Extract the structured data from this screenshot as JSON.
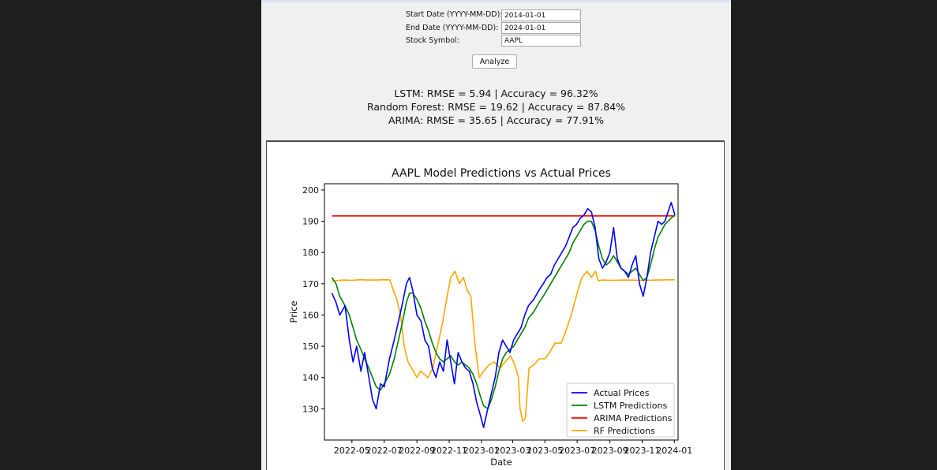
{
  "form": {
    "start_label": "Start Date (YYYY-MM-DD):",
    "start_value": "2014-01-01",
    "end_label": "End Date (YYYY-MM-DD):",
    "end_value": "2024-01-01",
    "symbol_label": "Stock Symbol:",
    "symbol_value": "AAPL",
    "analyze_label": "Analyze"
  },
  "results": [
    "LSTM: RMSE = 5.94 | Accuracy = 96.32%",
    "Random Forest: RMSE = 19.62 | Accuracy = 87.84%",
    "ARIMA: RMSE = 35.65 | Accuracy = 77.91%"
  ],
  "chart_data": {
    "type": "line",
    "title": "AAPL Model Predictions vs Actual Prices",
    "xlabel": "Date",
    "ylabel": "Price",
    "x_range": [
      "2022-03-10",
      "2024-01-08"
    ],
    "ylim": [
      120,
      202
    ],
    "x_ticks": [
      "2022-05",
      "2022-07",
      "2022-09",
      "2022-11",
      "2023-01",
      "2023-03",
      "2023-05",
      "2023-07",
      "2023-09",
      "2023-11",
      "2024-01"
    ],
    "x_tick_dates": [
      "2022-05-01",
      "2022-07-01",
      "2022-09-01",
      "2022-11-01",
      "2023-01-01",
      "2023-03-01",
      "2023-05-01",
      "2023-07-01",
      "2023-09-01",
      "2023-11-01",
      "2024-01-01"
    ],
    "y_ticks": [
      130,
      140,
      150,
      160,
      170,
      180,
      190,
      200
    ],
    "grid": false,
    "legend": "lower-right",
    "series": [
      {
        "name": "Actual Prices",
        "color": "#0000ff",
        "x": [
          "2022-03-24",
          "2022-04-01",
          "2022-04-08",
          "2022-04-18",
          "2022-04-26",
          "2022-05-03",
          "2022-05-10",
          "2022-05-18",
          "2022-05-25",
          "2022-06-02",
          "2022-06-09",
          "2022-06-16",
          "2022-06-24",
          "2022-07-01",
          "2022-07-11",
          "2022-07-20",
          "2022-07-28",
          "2022-08-05",
          "2022-08-12",
          "2022-08-18",
          "2022-08-24",
          "2022-09-01",
          "2022-09-09",
          "2022-09-16",
          "2022-09-23",
          "2022-09-30",
          "2022-10-07",
          "2022-10-14",
          "2022-10-21",
          "2022-10-28",
          "2022-11-04",
          "2022-11-11",
          "2022-11-18",
          "2022-11-25",
          "2022-12-02",
          "2022-12-09",
          "2022-12-16",
          "2022-12-23",
          "2022-12-30",
          "2023-01-05",
          "2023-01-13",
          "2023-01-20",
          "2023-01-27",
          "2023-02-03",
          "2023-02-10",
          "2023-02-17",
          "2023-02-24",
          "2023-03-03",
          "2023-03-10",
          "2023-03-17",
          "2023-03-24",
          "2023-03-31",
          "2023-04-10",
          "2023-04-20",
          "2023-04-28",
          "2023-05-05",
          "2023-05-12",
          "2023-05-19",
          "2023-05-26",
          "2023-06-02",
          "2023-06-09",
          "2023-06-16",
          "2023-06-23",
          "2023-06-30",
          "2023-07-07",
          "2023-07-14",
          "2023-07-21",
          "2023-07-28",
          "2023-08-04",
          "2023-08-11",
          "2023-08-18",
          "2023-08-25",
          "2023-09-01",
          "2023-09-08",
          "2023-09-15",
          "2023-09-22",
          "2023-09-29",
          "2023-10-06",
          "2023-10-13",
          "2023-10-20",
          "2023-10-27",
          "2023-11-03",
          "2023-11-10",
          "2023-11-17",
          "2023-11-24",
          "2023-12-01",
          "2023-12-08",
          "2023-12-14",
          "2023-12-20",
          "2023-12-26",
          "2024-01-02"
        ],
        "values": [
          167,
          164,
          160,
          163,
          152,
          145,
          150,
          142,
          148,
          140,
          133,
          130,
          138,
          137,
          146,
          152,
          158,
          164,
          170,
          172,
          168,
          160,
          158,
          152,
          150,
          143,
          140,
          145,
          142,
          152,
          145,
          138,
          148,
          145,
          143,
          142,
          138,
          132,
          128,
          124,
          130,
          135,
          140,
          148,
          152,
          150,
          148,
          152,
          154,
          156,
          160,
          163,
          165,
          168,
          170,
          172,
          173,
          176,
          178,
          180,
          182,
          185,
          188,
          189,
          191,
          192,
          194,
          193,
          188,
          178,
          175,
          177,
          180,
          188,
          178,
          175,
          174,
          172,
          176,
          179,
          170,
          166,
          172,
          180,
          185,
          190,
          189,
          190,
          193,
          196,
          192
        ]
      },
      {
        "name": "LSTM Predictions",
        "color": "#008000",
        "x": [
          "2022-03-24",
          "2022-04-01",
          "2022-04-08",
          "2022-04-18",
          "2022-04-26",
          "2022-05-03",
          "2022-05-10",
          "2022-05-18",
          "2022-05-25",
          "2022-06-02",
          "2022-06-09",
          "2022-06-16",
          "2022-06-24",
          "2022-07-01",
          "2022-07-11",
          "2022-07-20",
          "2022-07-28",
          "2022-08-05",
          "2022-08-12",
          "2022-08-18",
          "2022-08-24",
          "2022-09-01",
          "2022-09-09",
          "2022-09-16",
          "2022-09-23",
          "2022-09-30",
          "2022-10-07",
          "2022-10-14",
          "2022-10-21",
          "2022-10-28",
          "2022-11-04",
          "2022-11-11",
          "2022-11-18",
          "2022-11-25",
          "2022-12-02",
          "2022-12-09",
          "2022-12-16",
          "2022-12-23",
          "2022-12-30",
          "2023-01-05",
          "2023-01-13",
          "2023-01-20",
          "2023-01-27",
          "2023-02-03",
          "2023-02-10",
          "2023-02-17",
          "2023-02-24",
          "2023-03-03",
          "2023-03-10",
          "2023-03-17",
          "2023-03-24",
          "2023-03-31",
          "2023-04-10",
          "2023-04-20",
          "2023-04-28",
          "2023-05-05",
          "2023-05-12",
          "2023-05-19",
          "2023-05-26",
          "2023-06-02",
          "2023-06-09",
          "2023-06-16",
          "2023-06-23",
          "2023-06-30",
          "2023-07-07",
          "2023-07-14",
          "2023-07-21",
          "2023-07-28",
          "2023-08-04",
          "2023-08-11",
          "2023-08-18",
          "2023-08-25",
          "2023-09-01",
          "2023-09-08",
          "2023-09-15",
          "2023-09-22",
          "2023-09-29",
          "2023-10-06",
          "2023-10-13",
          "2023-10-20",
          "2023-10-27",
          "2023-11-03",
          "2023-11-10",
          "2023-11-17",
          "2023-11-24",
          "2023-12-01",
          "2023-12-08",
          "2023-12-14",
          "2023-12-20",
          "2023-12-26",
          "2024-01-02"
        ],
        "values": [
          172,
          170,
          166,
          163,
          160,
          156,
          152,
          149,
          146,
          143,
          140,
          137,
          136,
          138,
          141,
          146,
          152,
          158,
          164,
          167,
          167,
          165,
          162,
          158,
          155,
          151,
          148,
          146,
          145,
          146,
          147,
          145,
          144,
          145,
          144,
          143,
          141,
          138,
          134,
          131,
          130,
          133,
          137,
          142,
          146,
          148,
          149,
          150,
          152,
          154,
          156,
          159,
          161,
          164,
          166,
          168,
          170,
          172,
          174,
          176,
          178,
          180,
          183,
          185,
          187,
          189,
          190,
          190,
          187,
          182,
          178,
          176,
          177,
          179,
          177,
          175,
          174,
          173,
          174,
          175,
          173,
          171,
          172,
          176,
          181,
          185,
          187,
          189,
          190,
          191,
          192
        ]
      },
      {
        "name": "ARIMA Predictions",
        "color": "#ff0000",
        "x": [
          "2022-03-24",
          "2024-01-02"
        ],
        "values": [
          191.7,
          191.7
        ]
      },
      {
        "name": "RF Predictions",
        "color": "#ffa500",
        "x": [
          "2022-03-24",
          "2022-04-01",
          "2022-04-15",
          "2022-05-01",
          "2022-05-15",
          "2022-06-01",
          "2022-06-15",
          "2022-07-01",
          "2022-07-12",
          "2022-07-18",
          "2022-07-25",
          "2022-08-01",
          "2022-08-08",
          "2022-08-15",
          "2022-08-22",
          "2022-09-01",
          "2022-09-08",
          "2022-09-15",
          "2022-09-22",
          "2022-10-01",
          "2022-10-10",
          "2022-10-20",
          "2022-10-28",
          "2022-11-04",
          "2022-11-12",
          "2022-11-20",
          "2022-11-28",
          "2022-12-05",
          "2022-12-12",
          "2022-12-20",
          "2022-12-28",
          "2023-01-05",
          "2023-01-15",
          "2023-01-25",
          "2023-02-05",
          "2023-02-15",
          "2023-02-25",
          "2023-03-05",
          "2023-03-12",
          "2023-03-15",
          "2023-03-20",
          "2023-03-25",
          "2023-04-01",
          "2023-04-10",
          "2023-04-20",
          "2023-05-01",
          "2023-05-10",
          "2023-05-20",
          "2023-06-01",
          "2023-06-10",
          "2023-06-20",
          "2023-07-01",
          "2023-07-10",
          "2023-07-20",
          "2023-07-28",
          "2023-08-05",
          "2023-08-10",
          "2023-08-20",
          "2023-09-01",
          "2023-10-01",
          "2023-11-01",
          "2023-12-01",
          "2024-01-02"
        ],
        "values": [
          171,
          171,
          171.2,
          171.1,
          171.3,
          171.2,
          171.2,
          171.3,
          171.2,
          168,
          165,
          160,
          150,
          145,
          143,
          140,
          142,
          141,
          140,
          143,
          150,
          158,
          166,
          172,
          174,
          170,
          172,
          168,
          166,
          150,
          140,
          142,
          144,
          145,
          143,
          145,
          147,
          144,
          140,
          130,
          126,
          127,
          143,
          144,
          146,
          146,
          148,
          151,
          151,
          155,
          160,
          167,
          172,
          174,
          172,
          174,
          171,
          171.2,
          171.1,
          171.2,
          171.1,
          171.2,
          171.3
        ]
      }
    ]
  }
}
